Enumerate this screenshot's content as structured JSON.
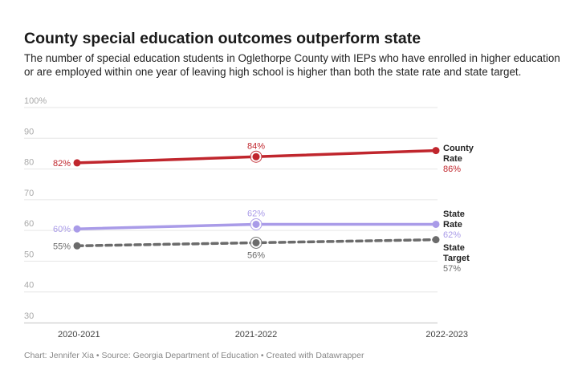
{
  "title": "County special education outcomes outperform state",
  "subtitle": "The number of special education students in Oglethorpe County with IEPs who have enrolled in higher education or are employed within one year of leaving high school is higher than both the state rate and state target.",
  "footer": "Chart: Jennifer Xia • Source: Georgia Department of Education • Created with Datawrapper",
  "chart_data": {
    "type": "line",
    "title": "County special education outcomes outperform state",
    "x": [
      "2020-2021",
      "2021-2022",
      "2022-2023"
    ],
    "ylim": [
      30,
      100
    ],
    "yticks": [
      30,
      40,
      50,
      60,
      70,
      80,
      90,
      100
    ],
    "ytick_labels": [
      "30",
      "40",
      "50",
      "60",
      "70",
      "80",
      "90",
      "100%"
    ],
    "grid": true,
    "series": [
      {
        "name": "County Rate",
        "name_lines": [
          "County",
          "Rate"
        ],
        "values": [
          82,
          84,
          86
        ],
        "point_labels": [
          "82%",
          "84%",
          null
        ],
        "end_label": "86%",
        "color": "#c0262d",
        "style": "solid"
      },
      {
        "name": "State Rate",
        "name_lines": [
          "State",
          "Rate"
        ],
        "values": [
          60.5,
          62,
          62
        ],
        "point_labels": [
          "60%",
          "62%",
          null
        ],
        "end_label": "62%",
        "color": "#a99be8",
        "style": "solid"
      },
      {
        "name": "State Target",
        "name_lines": [
          "State",
          "Target"
        ],
        "values": [
          55,
          56,
          57
        ],
        "point_labels": [
          "55%",
          "56%",
          null
        ],
        "end_label": "57%",
        "color": "#6b6b6b",
        "style": "dashed"
      }
    ]
  }
}
